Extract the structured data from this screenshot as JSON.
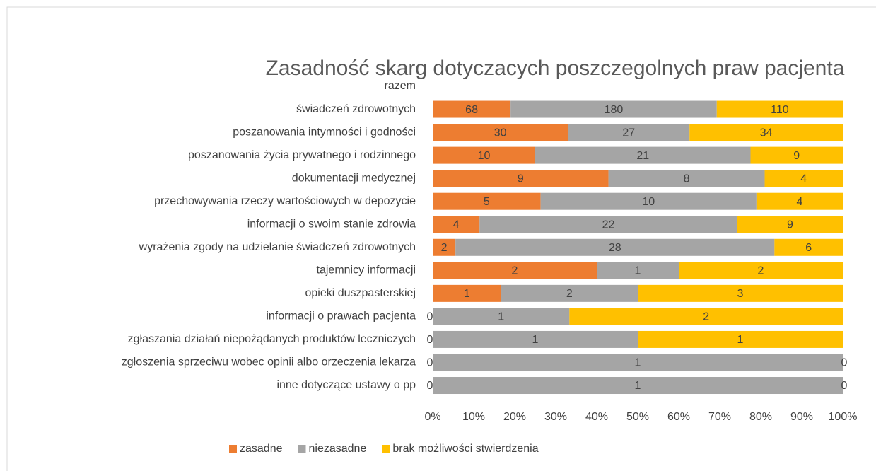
{
  "chart_data": {
    "type": "bar",
    "orientation": "horizontal",
    "stacking": "percent",
    "title": "Zasadność skarg dotyczacych poszczegolnych  praw pacjenta",
    "categories": [
      "razem",
      "świadczeń zdrowotnych",
      "poszanowania intymności i godności",
      "poszanowania życia prywatnego i rodzinnego",
      "dokumentacji medycznej",
      "przechowywania rzeczy wartościowych w depozycie",
      "informacji o swoim stanie zdrowia",
      "wyrażenia zgody na udzielanie świadczeń zdrowotnych",
      "tajemnicy informacji",
      "opieki duszpasterskiej",
      "informacji o prawach pacjenta",
      "zgłaszania działań niepożądanych produktów leczniczych",
      "zgłoszenia sprzeciwu wobec opinii albo orzeczenia lekarza",
      "inne dotyczące ustawy o pp"
    ],
    "series": [
      {
        "name": "zasadne",
        "color": "#ED7D31",
        "values": [
          null,
          68,
          30,
          10,
          9,
          5,
          4,
          2,
          2,
          1,
          0,
          0,
          0,
          0
        ]
      },
      {
        "name": "niezasadne",
        "color": "#A5A5A5",
        "values": [
          null,
          180,
          27,
          21,
          8,
          10,
          22,
          28,
          1,
          2,
          1,
          1,
          1,
          1
        ]
      },
      {
        "name": "brak możliwości stwierdzenia",
        "color": "#FFC000",
        "values": [
          null,
          110,
          34,
          9,
          4,
          4,
          9,
          6,
          2,
          3,
          2,
          1,
          0,
          0
        ]
      }
    ],
    "xlim": [
      0,
      100
    ],
    "xticks": [
      {
        "value": 0,
        "label": "0%"
      },
      {
        "value": 10,
        "label": "10%"
      },
      {
        "value": 20,
        "label": "20%"
      },
      {
        "value": 30,
        "label": "30%"
      },
      {
        "value": 40,
        "label": "40%"
      },
      {
        "value": 50,
        "label": "50%"
      },
      {
        "value": 60,
        "label": "60%"
      },
      {
        "value": 70,
        "label": "70%"
      },
      {
        "value": 80,
        "label": "80%"
      },
      {
        "value": 90,
        "label": "90%"
      },
      {
        "value": 100,
        "label": "100%"
      }
    ],
    "legend": "bottom"
  }
}
